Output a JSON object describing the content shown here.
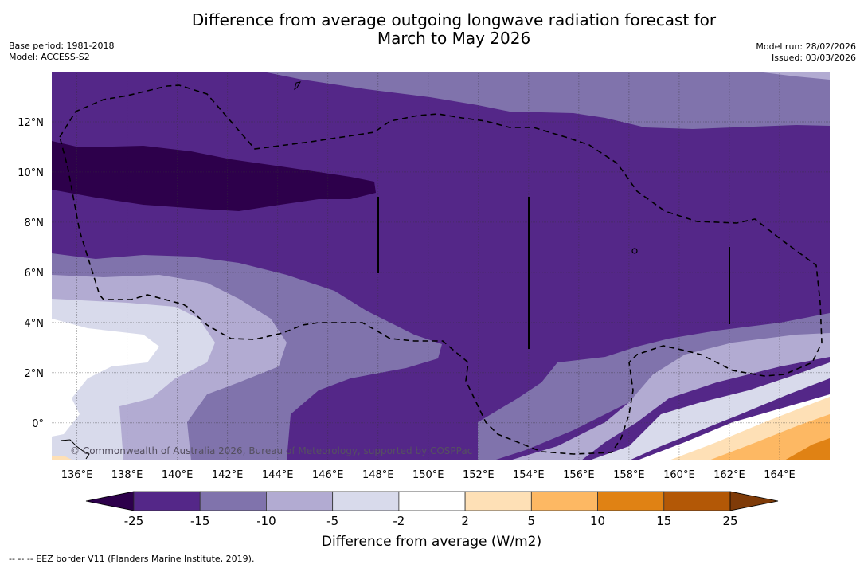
{
  "header": {
    "title_line1": "Difference from average outgoing longwave radiation forecast for",
    "title_line2": "March to May 2026",
    "base_period": "Base period: 1981-2018",
    "model": "Model: ACCESS-S2",
    "model_run": "Model run: 28/02/2026",
    "issued": "Issued: 03/03/2026"
  },
  "map": {
    "extent": {
      "lon_min": 135,
      "lon_max": 166,
      "lat_min": -1.5,
      "lat_max": 14
    },
    "lon_ticks": [
      {
        "value": 136,
        "label": "136°E"
      },
      {
        "value": 138,
        "label": "138°E"
      },
      {
        "value": 140,
        "label": "140°E"
      },
      {
        "value": 142,
        "label": "142°E"
      },
      {
        "value": 144,
        "label": "144°E"
      },
      {
        "value": 146,
        "label": "146°E"
      },
      {
        "value": 148,
        "label": "148°E"
      },
      {
        "value": 150,
        "label": "150°E"
      },
      {
        "value": 152,
        "label": "152°E"
      },
      {
        "value": 154,
        "label": "154°E"
      },
      {
        "value": 156,
        "label": "156°E"
      },
      {
        "value": 158,
        "label": "158°E"
      },
      {
        "value": 160,
        "label": "160°E"
      },
      {
        "value": 162,
        "label": "162°E"
      },
      {
        "value": 164,
        "label": "164°E"
      }
    ],
    "lat_ticks": [
      {
        "value": 12,
        "label": "12°N"
      },
      {
        "value": 10,
        "label": "10°N"
      },
      {
        "value": 8,
        "label": "8°N"
      },
      {
        "value": 6,
        "label": "6°N"
      },
      {
        "value": 4,
        "label": "4°N"
      },
      {
        "value": 2,
        "label": "2°N"
      },
      {
        "value": 0,
        "label": "0°"
      }
    ],
    "copyright": "© Commonwealth of Australia 2026, Bureau of Meteorology, supported by COSPPac"
  },
  "colorbar": {
    "title": "Difference from average (W/m2)",
    "tick_labels": [
      "-25",
      "-15",
      "-10",
      "-5",
      "-2",
      "2",
      "5",
      "10",
      "15",
      "25"
    ],
    "under_color": "#2d004b",
    "over_color": "#7f3b08",
    "bins": [
      {
        "from": -25,
        "to": -15,
        "color": "#542788"
      },
      {
        "from": -15,
        "to": -10,
        "color": "#8073ac"
      },
      {
        "from": -10,
        "to": -5,
        "color": "#b2abd2"
      },
      {
        "from": -5,
        "to": -2,
        "color": "#d8daeb"
      },
      {
        "from": -2,
        "to": 2,
        "color": "#ffffff"
      },
      {
        "from": 2,
        "to": 5,
        "color": "#fee0b6"
      },
      {
        "from": 5,
        "to": 10,
        "color": "#fdb863"
      },
      {
        "from": 10,
        "to": 15,
        "color": "#e08214"
      },
      {
        "from": 15,
        "to": 25,
        "color": "#b35806"
      }
    ]
  },
  "footnote": "--  --  -- EEZ border V11 (Flanders Marine Institute, 2019)."
}
